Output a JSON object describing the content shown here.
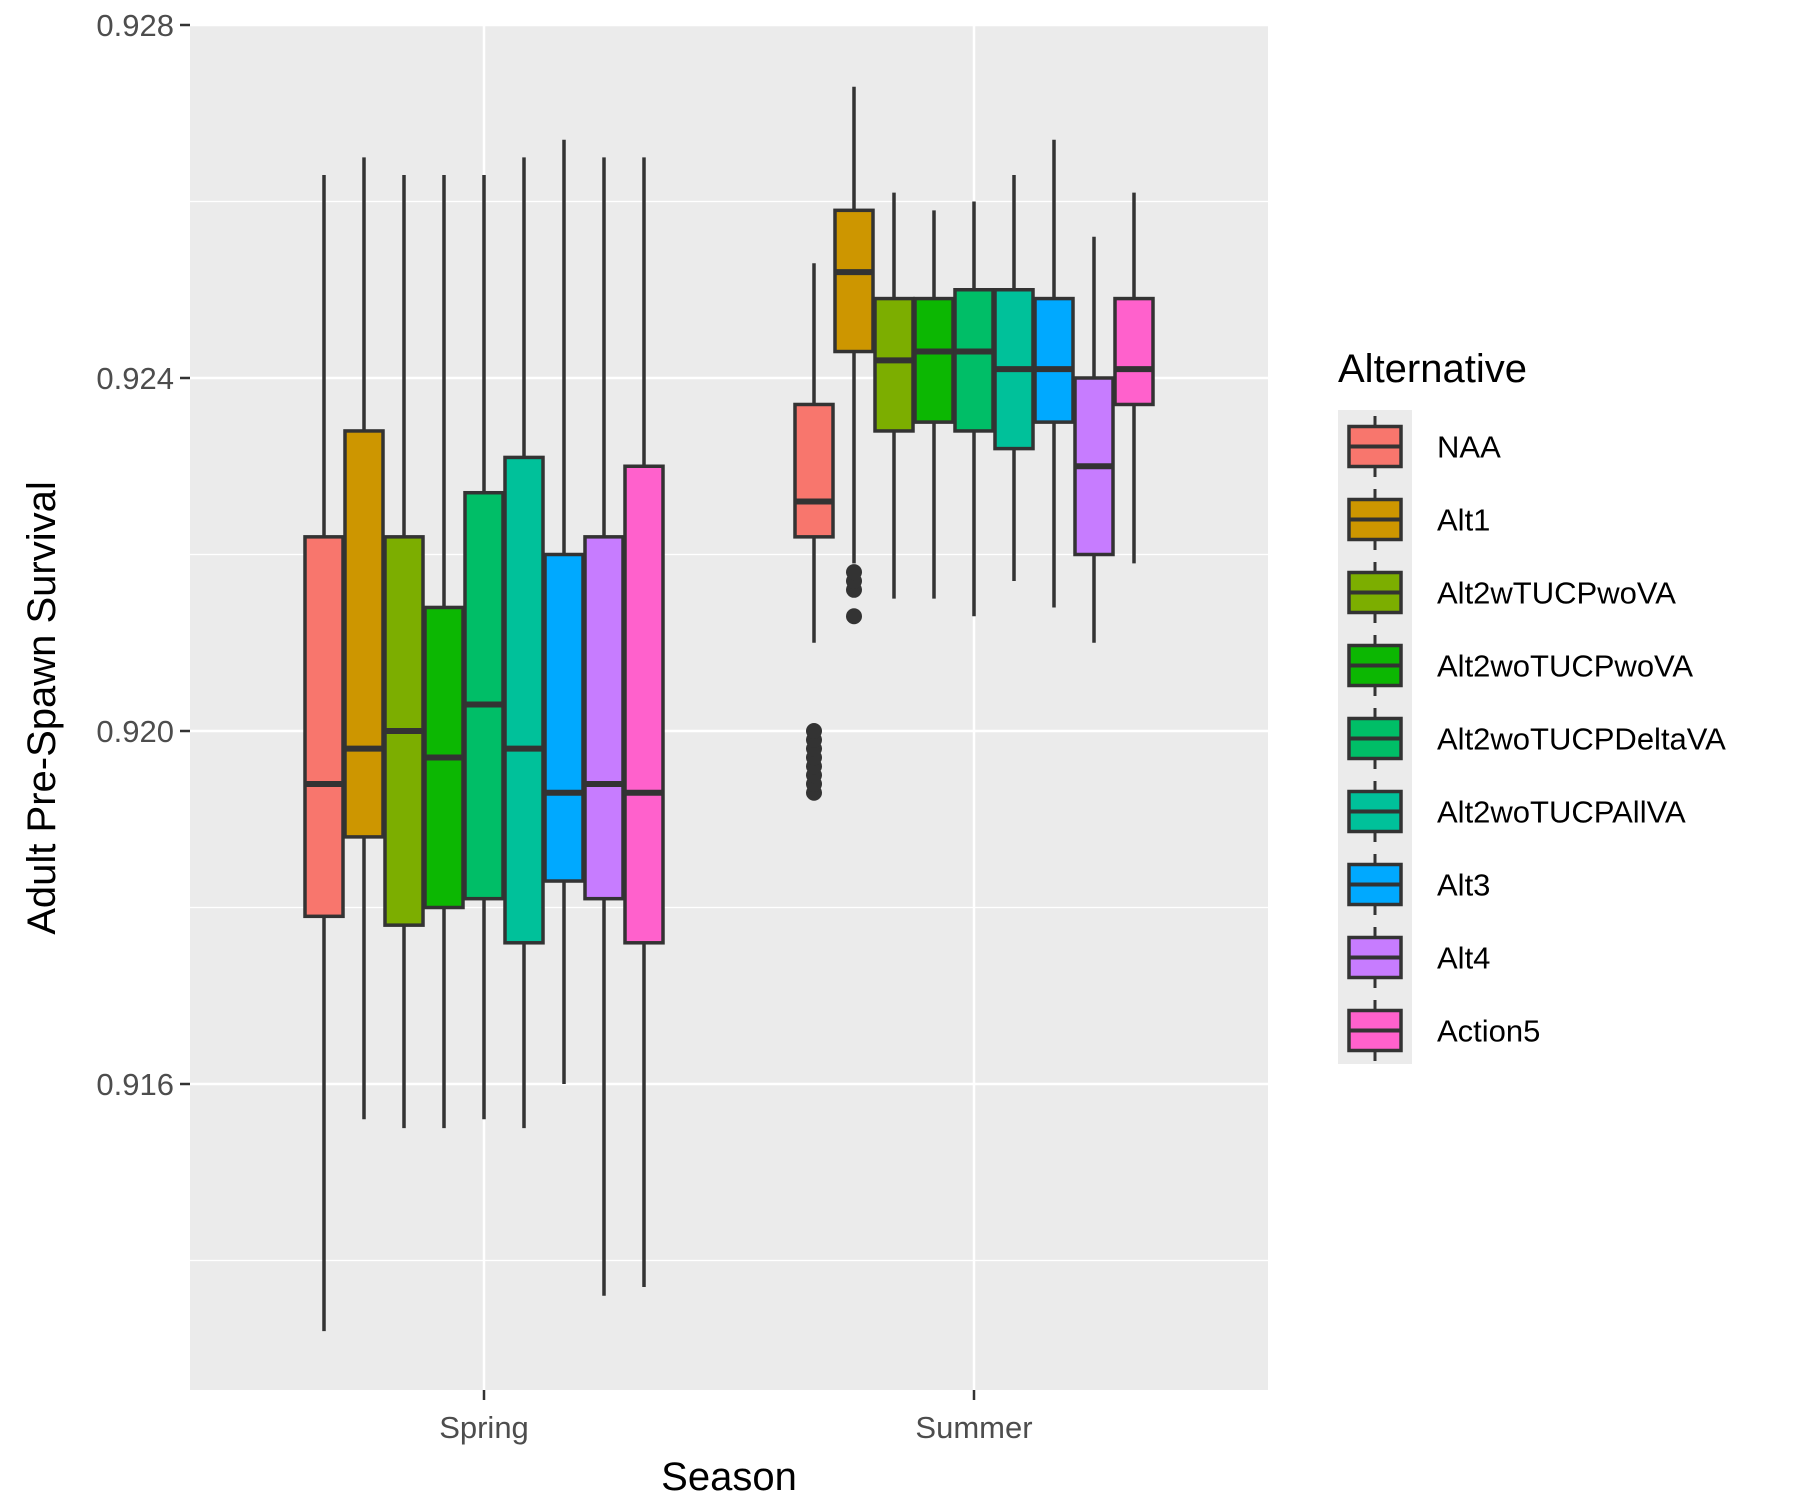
{
  "chart_data": {
    "type": "boxplot",
    "xlabel": "Season",
    "ylabel": "Adult Pre-Spawn Survival",
    "ylim": [
      0.9127,
      0.928
    ],
    "y_ticks": [
      "0.916",
      "0.920",
      "0.924",
      "0.928"
    ],
    "y_tick_values": [
      0.916,
      0.92,
      0.924,
      0.928
    ],
    "y_minor_grid": [
      0.914,
      0.918,
      0.922,
      0.926
    ],
    "grid": true,
    "legend": {
      "title": "Alternative",
      "placement": "right"
    },
    "categories": [
      "Spring",
      "Summer"
    ],
    "series": [
      {
        "name": "NAA",
        "color": "#F8766D",
        "boxes": [
          {
            "whisker_low": 0.9132,
            "q1": 0.9179,
            "median": 0.9194,
            "q3": 0.9222,
            "whisker_high": 0.9263,
            "outliers": []
          },
          {
            "whisker_low": 0.921,
            "q1": 0.9222,
            "median": 0.9226,
            "q3": 0.9237,
            "whisker_high": 0.9253,
            "outliers": [
              0.9193,
              0.9194,
              0.9195,
              0.9196,
              0.9197,
              0.9198,
              0.9199,
              0.92
            ]
          }
        ]
      },
      {
        "name": "Alt1",
        "color": "#CD9600",
        "boxes": [
          {
            "whisker_low": 0.9156,
            "q1": 0.9188,
            "median": 0.9198,
            "q3": 0.9234,
            "whisker_high": 0.9265,
            "outliers": []
          },
          {
            "whisker_low": 0.9219,
            "q1": 0.9243,
            "median": 0.9252,
            "q3": 0.9259,
            "whisker_high": 0.9273,
            "outliers": [
              0.9213,
              0.9216,
              0.9217,
              0.9218
            ]
          }
        ]
      },
      {
        "name": "Alt2wTUCPwoVA",
        "color": "#7CAE00",
        "boxes": [
          {
            "whisker_low": 0.9155,
            "q1": 0.9178,
            "median": 0.92,
            "q3": 0.9222,
            "whisker_high": 0.9263,
            "outliers": []
          },
          {
            "whisker_low": 0.9215,
            "q1": 0.9234,
            "median": 0.9242,
            "q3": 0.9249,
            "whisker_high": 0.9261,
            "outliers": []
          }
        ]
      },
      {
        "name": "Alt2woTUCPwoVA",
        "color": "#0CB702",
        "boxes": [
          {
            "whisker_low": 0.9155,
            "q1": 0.918,
            "median": 0.9197,
            "q3": 0.9214,
            "whisker_high": 0.9263,
            "outliers": []
          },
          {
            "whisker_low": 0.9215,
            "q1": 0.9235,
            "median": 0.9243,
            "q3": 0.9249,
            "whisker_high": 0.9259,
            "outliers": []
          }
        ]
      },
      {
        "name": "Alt2woTUCPDeltaVA",
        "color": "#00BE67",
        "boxes": [
          {
            "whisker_low": 0.9156,
            "q1": 0.9181,
            "median": 0.9203,
            "q3": 0.9227,
            "whisker_high": 0.9263,
            "outliers": []
          },
          {
            "whisker_low": 0.9213,
            "q1": 0.9234,
            "median": 0.9243,
            "q3": 0.925,
            "whisker_high": 0.926,
            "outliers": []
          }
        ]
      },
      {
        "name": "Alt2woTUCPAllVA",
        "color": "#00C19A",
        "boxes": [
          {
            "whisker_low": 0.9155,
            "q1": 0.9176,
            "median": 0.9198,
            "q3": 0.9231,
            "whisker_high": 0.9265,
            "outliers": []
          },
          {
            "whisker_low": 0.9217,
            "q1": 0.9232,
            "median": 0.9241,
            "q3": 0.925,
            "whisker_high": 0.9263,
            "outliers": []
          }
        ]
      },
      {
        "name": "Alt3",
        "color": "#00A9FF",
        "boxes": [
          {
            "whisker_low": 0.916,
            "q1": 0.9183,
            "median": 0.9193,
            "q3": 0.922,
            "whisker_high": 0.9267,
            "outliers": []
          },
          {
            "whisker_low": 0.9214,
            "q1": 0.9235,
            "median": 0.9241,
            "q3": 0.9249,
            "whisker_high": 0.9267,
            "outliers": []
          }
        ]
      },
      {
        "name": "Alt4",
        "color": "#C77CFF",
        "boxes": [
          {
            "whisker_low": 0.9136,
            "q1": 0.9181,
            "median": 0.9194,
            "q3": 0.9222,
            "whisker_high": 0.9265,
            "outliers": []
          },
          {
            "whisker_low": 0.921,
            "q1": 0.922,
            "median": 0.923,
            "q3": 0.924,
            "whisker_high": 0.9256,
            "outliers": []
          }
        ]
      },
      {
        "name": "Action5",
        "color": "#FF61CC",
        "boxes": [
          {
            "whisker_low": 0.9137,
            "q1": 0.9176,
            "median": 0.9193,
            "q3": 0.923,
            "whisker_high": 0.9265,
            "outliers": []
          },
          {
            "whisker_low": 0.9219,
            "q1": 0.9237,
            "median": 0.9241,
            "q3": 0.9249,
            "whisker_high": 0.9261,
            "outliers": []
          }
        ]
      }
    ]
  }
}
